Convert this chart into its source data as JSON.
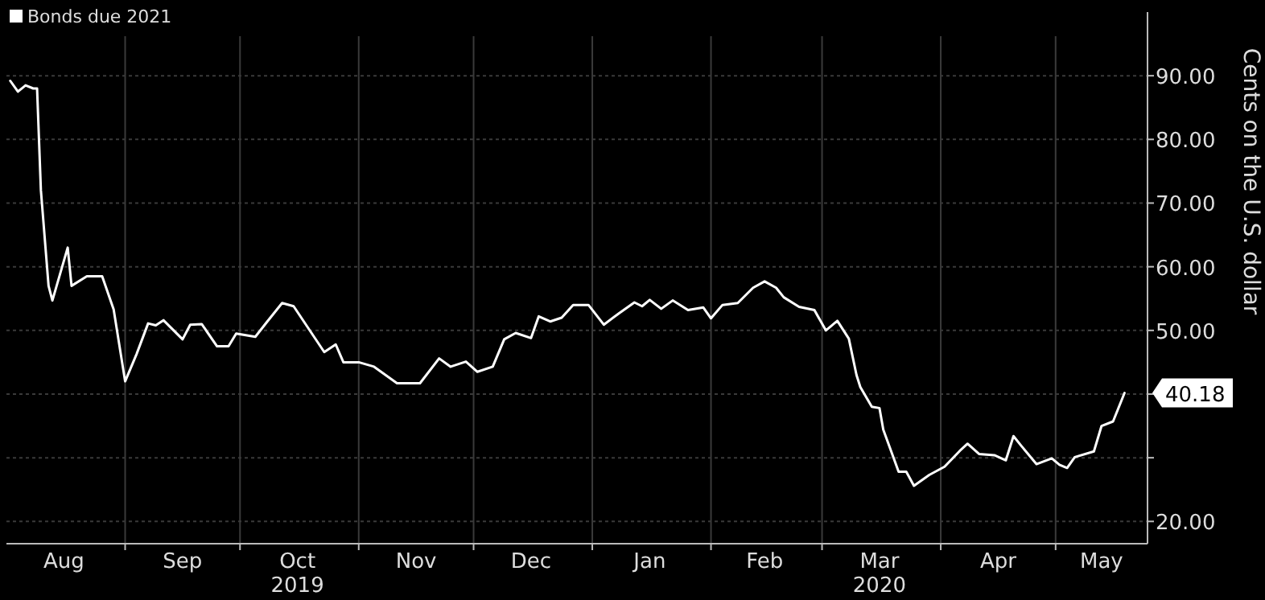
{
  "chart_data": {
    "type": "line",
    "ylabel": "Cents on the U.S. dollar",
    "legend": "top left",
    "grid": true,
    "marker": "none",
    "line_style": "solid",
    "xlim": [
      "2019-08-01",
      "2020-05-25"
    ],
    "ylim": [
      16.5,
      100
    ],
    "yticks": [
      {
        "value": 20,
        "label": "20.00"
      },
      {
        "value": 30,
        "label": null
      },
      {
        "value": 40,
        "label": null
      },
      {
        "value": 50,
        "label": "50.00"
      },
      {
        "value": 60,
        "label": "60.00"
      },
      {
        "value": 70,
        "label": "70.00"
      },
      {
        "value": 80,
        "label": "80.00"
      },
      {
        "value": 90,
        "label": "90.00"
      }
    ],
    "xticks": [
      {
        "value": "2019-08-16",
        "label": "Aug"
      },
      {
        "value": "2019-09-01",
        "label": null
      },
      {
        "value": "2019-09-16",
        "label": "Sep"
      },
      {
        "value": "2019-10-01",
        "label": null
      },
      {
        "value": "2019-10-16",
        "label": "Oct\n2019"
      },
      {
        "value": "2019-11-01",
        "label": null
      },
      {
        "value": "2019-11-16",
        "label": "Nov"
      },
      {
        "value": "2019-12-01",
        "label": null
      },
      {
        "value": "2019-12-16",
        "label": "Dec"
      },
      {
        "value": "2020-01-01",
        "label": null
      },
      {
        "value": "2020-01-16",
        "label": "Jan"
      },
      {
        "value": "2020-02-01",
        "label": null
      },
      {
        "value": "2020-02-15",
        "label": "Feb"
      },
      {
        "value": "2020-03-01",
        "label": null
      },
      {
        "value": "2020-03-16",
        "label": "Mar\n2020"
      },
      {
        "value": "2020-04-01",
        "label": null
      },
      {
        "value": "2020-04-16",
        "label": "Apr"
      },
      {
        "value": "2020-05-01",
        "label": null
      },
      {
        "value": "2020-05-13",
        "label": "May"
      }
    ],
    "annotations": [
      "40.18"
    ],
    "x": [
      "2019-08-02",
      "2019-08-04",
      "2019-08-06",
      "2019-08-08",
      "2019-08-09",
      "2019-08-10",
      "2019-08-12",
      "2019-08-13",
      "2019-08-17",
      "2019-08-18",
      "2019-08-22",
      "2019-08-26",
      "2019-08-29",
      "2019-09-01",
      "2019-09-04",
      "2019-09-07",
      "2019-09-09",
      "2019-09-11",
      "2019-09-16",
      "2019-09-18",
      "2019-09-21",
      "2019-09-25",
      "2019-09-28",
      "2019-09-30",
      "2019-10-05",
      "2019-10-08",
      "2019-10-12",
      "2019-10-15",
      "2019-10-17",
      "2019-10-23",
      "2019-10-26",
      "2019-10-28",
      "2019-11-01",
      "2019-11-05",
      "2019-11-11",
      "2019-11-17",
      "2019-11-22",
      "2019-11-25",
      "2019-11-29",
      "2019-12-02",
      "2019-12-06",
      "2019-12-09",
      "2019-12-12",
      "2019-12-16",
      "2019-12-18",
      "2019-12-21",
      "2019-12-24",
      "2019-12-27",
      "2019-12-31",
      "2020-01-04",
      "2020-01-08",
      "2020-01-12",
      "2020-01-14",
      "2020-01-16",
      "2020-01-19",
      "2020-01-22",
      "2020-01-26",
      "2020-01-30",
      "2020-02-01",
      "2020-02-04",
      "2020-02-08",
      "2020-02-12",
      "2020-02-15",
      "2020-02-18",
      "2020-02-20",
      "2020-02-24",
      "2020-02-28",
      "2020-03-02",
      "2020-03-05",
      "2020-03-08",
      "2020-03-10",
      "2020-03-11",
      "2020-03-14",
      "2020-03-16",
      "2020-03-17",
      "2020-03-21",
      "2020-03-23",
      "2020-03-25",
      "2020-03-29",
      "2020-04-02",
      "2020-04-06",
      "2020-04-08",
      "2020-04-11",
      "2020-04-15",
      "2020-04-18",
      "2020-04-20",
      "2020-04-22",
      "2020-04-26",
      "2020-04-30",
      "2020-05-02",
      "2020-05-04",
      "2020-05-06",
      "2020-05-11",
      "2020-05-13",
      "2020-05-16",
      "2020-05-19"
    ],
    "series": [
      {
        "name": "Bonds due 2021",
        "color": "#ffffff",
        "values": [
          89.2,
          87.5,
          88.5,
          88,
          88,
          72,
          57,
          54.7,
          63,
          57,
          58.5,
          58.5,
          53.3,
          42,
          46.3,
          51.1,
          50.8,
          51.6,
          48.6,
          50.9,
          51,
          47.5,
          47.5,
          49.5,
          49,
          51.3,
          54.3,
          53.8,
          52,
          46.6,
          47.8,
          45,
          45,
          44.3,
          41.7,
          41.7,
          45.6,
          44.3,
          45.1,
          43.5,
          44.3,
          48.6,
          49.6,
          48.8,
          52.2,
          51.4,
          52,
          54,
          54,
          50.9,
          52.7,
          54.4,
          53.8,
          54.8,
          53.4,
          54.7,
          53.2,
          53.6,
          51.9,
          54,
          54.3,
          56.7,
          57.7,
          56.7,
          55.2,
          53.7,
          53.2,
          50,
          51.5,
          48.7,
          43,
          41.1,
          38,
          37.8,
          34.4,
          27.8,
          27.8,
          25.6,
          27.3,
          28.6,
          31.1,
          32.2,
          30.6,
          30.4,
          29.6,
          33.4,
          31.9,
          29,
          29.9,
          28.9,
          28.4,
          30.1,
          31,
          35,
          35.7,
          40.18
        ]
      }
    ]
  }
}
